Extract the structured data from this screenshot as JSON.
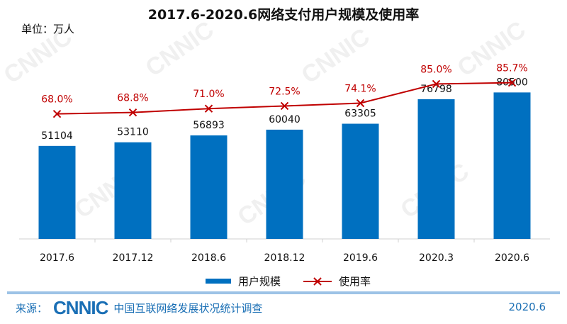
{
  "chart_data": {
    "type": "bar+line",
    "title": "2017.6-2020.6网络支付用户规模及使用率",
    "unit_label": "单位：万人",
    "categories": [
      "2017.6",
      "2017.12",
      "2018.6",
      "2018.12",
      "2019.6",
      "2020.3",
      "2020.6"
    ],
    "series": [
      {
        "name": "用户规模",
        "type": "bar",
        "values": [
          51104,
          53110,
          56893,
          60040,
          63305,
          76798,
          80500
        ],
        "color": "#0070c0",
        "ylim": [
          0,
          90000
        ]
      },
      {
        "name": "使用率",
        "type": "line",
        "values": [
          68.0,
          68.8,
          71.0,
          72.5,
          74.1,
          85.0,
          85.7
        ],
        "labels": [
          "68.0%",
          "68.8%",
          "71.0%",
          "72.5%",
          "74.1%",
          "85.0%",
          "85.7%"
        ],
        "color": "#c00000",
        "marker": "x",
        "ylim": [
          -3,
          90
        ]
      }
    ],
    "grid": false,
    "legend": "bottom"
  },
  "footer": {
    "source_label": "来源：",
    "logo": "CNNIC",
    "org": "中国互联网络发展状况统计调查",
    "date": "2020.6"
  }
}
